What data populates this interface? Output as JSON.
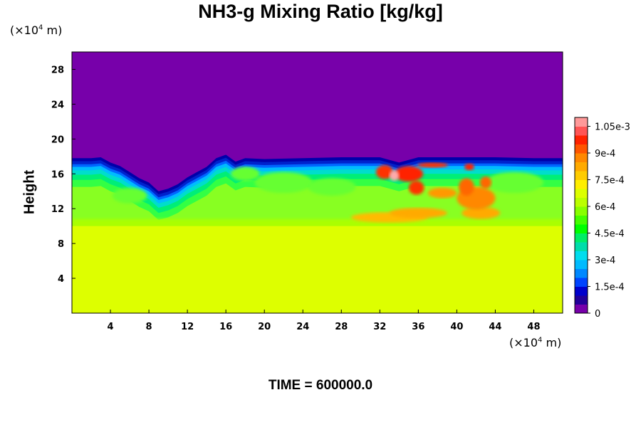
{
  "chart_data": {
    "type": "heatmap",
    "title": "NH3-g Mixing Ratio [kg/kg]",
    "ylabel": "Height",
    "xlabel": "",
    "x_unit_prefix": "(×10",
    "x_unit_exp": "4",
    "x_unit_suffix": " m)",
    "y_unit_prefix": "(×10",
    "y_unit_exp": "4",
    "y_unit_suffix": " m)",
    "xlim": [
      0,
      51
    ],
    "ylim": [
      0,
      30
    ],
    "x_ticks": [
      "4",
      "8",
      "12",
      "16",
      "20",
      "24",
      "28",
      "32",
      "36",
      "40",
      "44",
      "48"
    ],
    "y_ticks": [
      "4",
      "8",
      "12",
      "16",
      "20",
      "24",
      "28"
    ],
    "colorbar": {
      "range": [
        0,
        0.0011
      ],
      "tick_labels": [
        "0",
        "1.5e-4",
        "3e-4",
        "4.5e-4",
        "6e-4",
        "7.5e-4",
        "9e-4",
        "1.05e-3"
      ],
      "tick_values": [
        0,
        0.00015,
        0.0003,
        0.00045,
        0.0006,
        0.00075,
        0.0009,
        0.00105
      ]
    },
    "field_summary": {
      "lower_layer_value": 0.00078,
      "lower_layer_top": 10,
      "upper_layer_value": 0,
      "mixed_layer_top": 17.8,
      "colors": {
        "zero": "#7700aa",
        "lower": "#ddff00"
      }
    },
    "footer": "TIME = 600000.0"
  }
}
